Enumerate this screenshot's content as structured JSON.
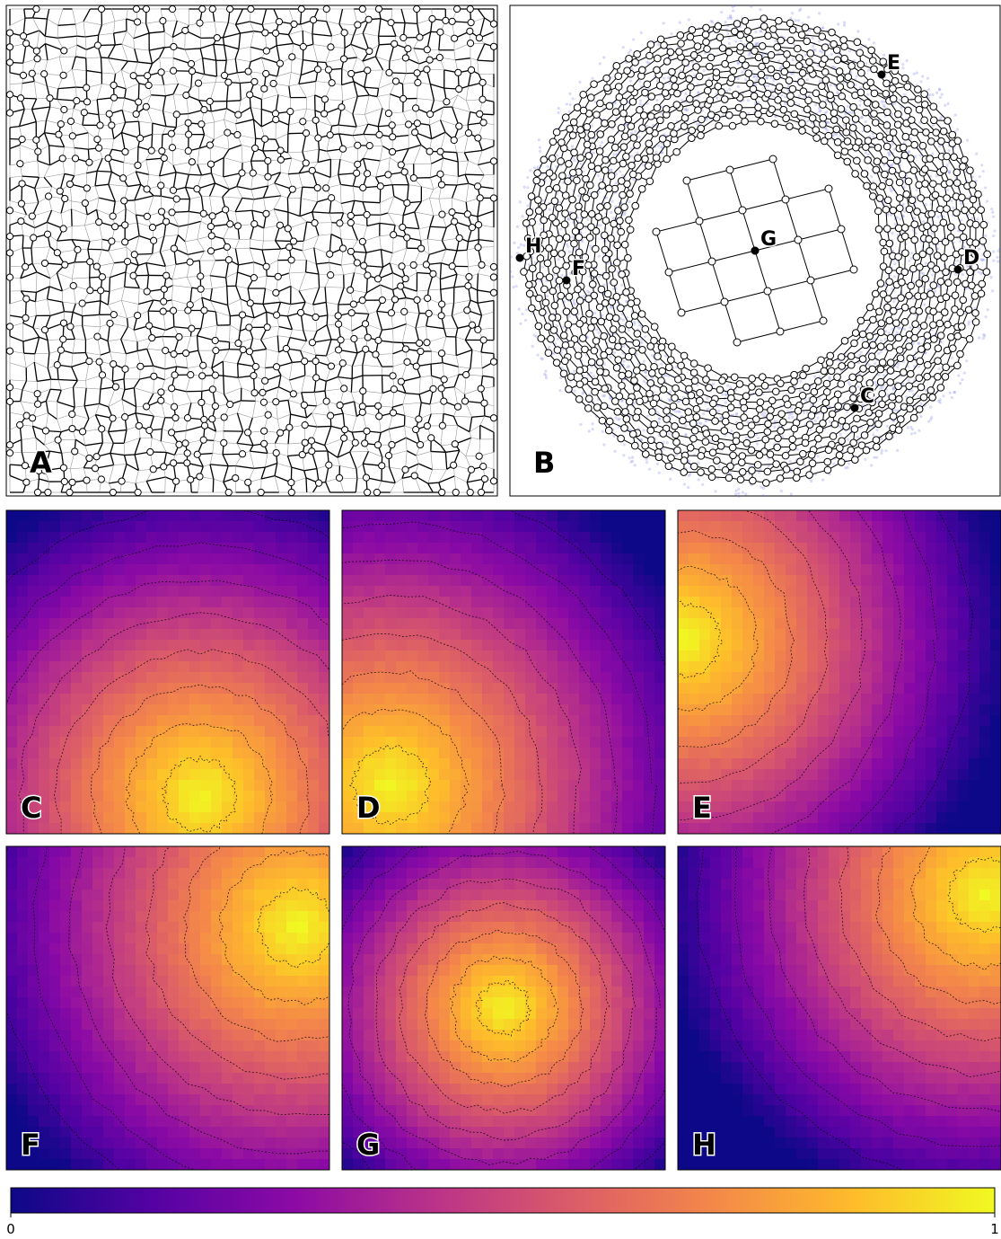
{
  "panel_labels": [
    "A",
    "B",
    "C",
    "D",
    "E",
    "F",
    "G",
    "H"
  ],
  "point_labels": [
    "C",
    "D",
    "E",
    "F",
    "G",
    "H"
  ],
  "colorbar": {
    "ticks": [
      0,
      1
    ]
  }
}
